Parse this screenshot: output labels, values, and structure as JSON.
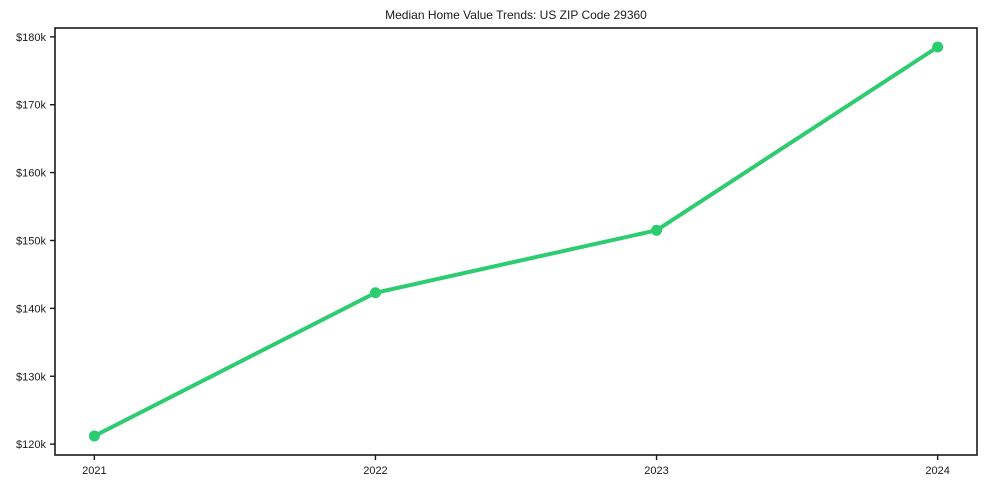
{
  "chart_data": {
    "type": "line",
    "title": "Median Home Value Trends: US ZIP Code 29360",
    "xlabel": "",
    "ylabel": "",
    "x": [
      2021,
      2022,
      2023,
      2024
    ],
    "x_tick_labels": [
      "2021",
      "2022",
      "2023",
      "2024"
    ],
    "series": [
      {
        "name": "Median Home Value",
        "values": [
          121200,
          142300,
          151500,
          178500
        ]
      }
    ],
    "yticks": [
      120000,
      130000,
      140000,
      150000,
      160000,
      170000,
      180000
    ],
    "ytick_labels": [
      "$120k",
      "$130k",
      "$140k",
      "$150k",
      "$160k",
      "$170k",
      "$180k"
    ],
    "ylim": [
      118400,
      181300
    ],
    "xlim": [
      2020.86,
      2024.14
    ],
    "grid": false,
    "legend": "none",
    "colors": {
      "line": "#2ecc71",
      "marker": "#2ecc71",
      "spine": "#1a1a1a",
      "text": "#1a1a1a",
      "background": "#ffffff"
    }
  }
}
